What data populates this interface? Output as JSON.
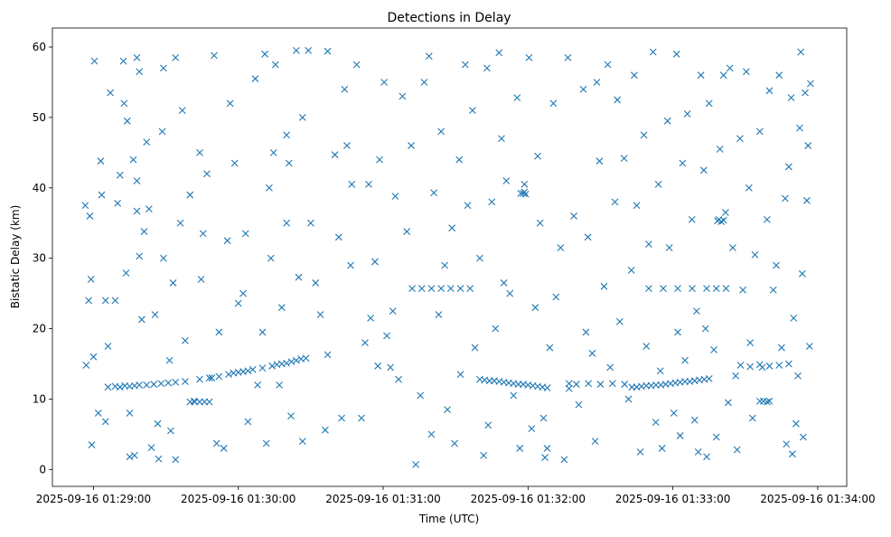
{
  "chart_data": {
    "type": "scatter",
    "title": "Detections in Delay",
    "xlabel": "Time (UTC)",
    "ylabel": "Bistatic Delay (km)",
    "x_units": "seconds after 2025-09-16 01:29:00",
    "xlim": [
      -17,
      312
    ],
    "ylim": [
      -2.4,
      62.7
    ],
    "grid": false,
    "marker": "x",
    "color": "#1f77b4",
    "xticks": [
      {
        "value": 0,
        "label": "2025-09-16 01:29:00"
      },
      {
        "value": 60,
        "label": "2025-09-16 01:30:00"
      },
      {
        "value": 120,
        "label": "2025-09-16 01:31:00"
      },
      {
        "value": 180,
        "label": "2025-09-16 01:32:00"
      },
      {
        "value": 240,
        "label": "2025-09-16 01:33:00"
      },
      {
        "value": 300,
        "label": "2025-09-16 01:34:00"
      }
    ],
    "yticks": [
      {
        "value": 0,
        "label": "0"
      },
      {
        "value": 10,
        "label": "10"
      },
      {
        "value": 20,
        "label": "20"
      },
      {
        "value": 30,
        "label": "30"
      },
      {
        "value": 40,
        "label": "40"
      },
      {
        "value": 50,
        "label": "50"
      },
      {
        "value": 60,
        "label": "60"
      }
    ],
    "points": [
      [
        -3.4,
        37.5
      ],
      [
        -1.5,
        36
      ],
      [
        0.4,
        58
      ],
      [
        -1,
        27
      ],
      [
        -2,
        24
      ],
      [
        0,
        16
      ],
      [
        -3,
        14.8
      ],
      [
        -0.7,
        3.5
      ],
      [
        2,
        8
      ],
      [
        3.4,
        39
      ],
      [
        3,
        43.8
      ],
      [
        5,
        24
      ],
      [
        6,
        17.5
      ],
      [
        5,
        6.8
      ],
      [
        7,
        53.5
      ],
      [
        9,
        24
      ],
      [
        10,
        37.8
      ],
      [
        11,
        41.8
      ],
      [
        12.4,
        58
      ],
      [
        12.7,
        52
      ],
      [
        14,
        49.5
      ],
      [
        13.5,
        27.9
      ],
      [
        15,
        8
      ],
      [
        15,
        1.8
      ],
      [
        17,
        2
      ],
      [
        16.5,
        44
      ],
      [
        18,
        41
      ],
      [
        18,
        36.7
      ],
      [
        19,
        56.5
      ],
      [
        18,
        58.5
      ],
      [
        19,
        30.3
      ],
      [
        20,
        21.3
      ],
      [
        22,
        46.5
      ],
      [
        21,
        33.8
      ],
      [
        23,
        37
      ],
      [
        24,
        3.1
      ],
      [
        25.5,
        22
      ],
      [
        26.6,
        6.5
      ],
      [
        27,
        1.5
      ],
      [
        28.5,
        48
      ],
      [
        29,
        57
      ],
      [
        29,
        30
      ],
      [
        31.5,
        15.5
      ],
      [
        32,
        5.5
      ],
      [
        33,
        26.5
      ],
      [
        34,
        58.5
      ],
      [
        34,
        1.4
      ],
      [
        36,
        35
      ],
      [
        36.8,
        51
      ],
      [
        38,
        18.3
      ],
      [
        40,
        39
      ],
      [
        41.6,
        9.7
      ],
      [
        44,
        45
      ],
      [
        44.6,
        27
      ],
      [
        45.4,
        33.5
      ],
      [
        47,
        42
      ],
      [
        49,
        13
      ],
      [
        50,
        58.8
      ],
      [
        51,
        3.7
      ],
      [
        52,
        19.5
      ],
      [
        54,
        3
      ],
      [
        55.5,
        32.5
      ],
      [
        56.6,
        52
      ],
      [
        58.5,
        43.5
      ],
      [
        60,
        23.6
      ],
      [
        62,
        25
      ],
      [
        63,
        33.5
      ],
      [
        64,
        6.8
      ],
      [
        67,
        55.5
      ],
      [
        68,
        12
      ],
      [
        70,
        19.5
      ],
      [
        71,
        59
      ],
      [
        71.6,
        3.7
      ],
      [
        72.8,
        40
      ],
      [
        73.5,
        30
      ],
      [
        74.6,
        45
      ],
      [
        75.4,
        57.5
      ],
      [
        77,
        12
      ],
      [
        78,
        23
      ],
      [
        80,
        35
      ],
      [
        80,
        47.5
      ],
      [
        81,
        43.5
      ],
      [
        81.8,
        7.6
      ],
      [
        84,
        59.5
      ],
      [
        85,
        27.3
      ],
      [
        86.6,
        4
      ],
      [
        86.6,
        50
      ],
      [
        89,
        59.5
      ],
      [
        90,
        35
      ],
      [
        92,
        26.5
      ],
      [
        94,
        22
      ],
      [
        96,
        5.6
      ],
      [
        97,
        16.3
      ],
      [
        97,
        59.4
      ],
      [
        100,
        44.7
      ],
      [
        101.6,
        33
      ],
      [
        102.8,
        7.3
      ],
      [
        104,
        54
      ],
      [
        105,
        46
      ],
      [
        106.5,
        29
      ],
      [
        107,
        40.5
      ],
      [
        109,
        57.5
      ],
      [
        111,
        7.3
      ],
      [
        112.5,
        18
      ],
      [
        114,
        40.5
      ],
      [
        114.8,
        21.5
      ],
      [
        116.6,
        29.5
      ],
      [
        117.8,
        14.7
      ],
      [
        118.5,
        44
      ],
      [
        120.4,
        55
      ],
      [
        121.5,
        19
      ],
      [
        123,
        14.5
      ],
      [
        124,
        22.5
      ],
      [
        125,
        38.8
      ],
      [
        126.4,
        12.8
      ],
      [
        128,
        53
      ],
      [
        129.8,
        33.8
      ],
      [
        131.6,
        46
      ],
      [
        133.5,
        0.7
      ],
      [
        135.4,
        10.5
      ],
      [
        137,
        55
      ],
      [
        139,
        58.7
      ],
      [
        140,
        5
      ],
      [
        141,
        39.3
      ],
      [
        143,
        22
      ],
      [
        144,
        48
      ],
      [
        145.5,
        29
      ],
      [
        146.6,
        8.5
      ],
      [
        148.5,
        34.3
      ],
      [
        149.6,
        3.7
      ],
      [
        151.5,
        44
      ],
      [
        152,
        13.5
      ],
      [
        154,
        57.5
      ],
      [
        155,
        37.5
      ],
      [
        157,
        51
      ],
      [
        158,
        17.3
      ],
      [
        160,
        30
      ],
      [
        161.6,
        2
      ],
      [
        163,
        57
      ],
      [
        163.5,
        6.3
      ],
      [
        165,
        38
      ],
      [
        166.5,
        20
      ],
      [
        168,
        59.2
      ],
      [
        169,
        47
      ],
      [
        170,
        26.5
      ],
      [
        171,
        41
      ],
      [
        172.5,
        25
      ],
      [
        174,
        10.5
      ],
      [
        175.5,
        52.8
      ],
      [
        176.6,
        3
      ],
      [
        178.5,
        40.5
      ],
      [
        180.4,
        58.5
      ],
      [
        181.5,
        5.8
      ],
      [
        183,
        23
      ],
      [
        184,
        44.5
      ],
      [
        185,
        35
      ],
      [
        186.4,
        7.3
      ],
      [
        187,
        1.7
      ],
      [
        187.9,
        3
      ],
      [
        189,
        17.3
      ],
      [
        190.5,
        52
      ],
      [
        191.6,
        24.5
      ],
      [
        193.5,
        31.5
      ],
      [
        195,
        1.4
      ],
      [
        196.5,
        58.5
      ],
      [
        197,
        11.5
      ],
      [
        199,
        36
      ],
      [
        201,
        9.2
      ],
      [
        202.9,
        54
      ],
      [
        204,
        19.5
      ],
      [
        204.8,
        33
      ],
      [
        206.6,
        16.5
      ],
      [
        207.8,
        4
      ],
      [
        208.5,
        55
      ],
      [
        209.6,
        43.8
      ],
      [
        211.5,
        26
      ],
      [
        213,
        57.5
      ],
      [
        214,
        14.5
      ],
      [
        216,
        38
      ],
      [
        217,
        52.5
      ],
      [
        218,
        21
      ],
      [
        219.8,
        44.2
      ],
      [
        221.6,
        10
      ],
      [
        222.8,
        28.3
      ],
      [
        224,
        56
      ],
      [
        225,
        37.5
      ],
      [
        226.5,
        2.5
      ],
      [
        228,
        47.5
      ],
      [
        229,
        17.5
      ],
      [
        230,
        32
      ],
      [
        231.8,
        59.3
      ],
      [
        232.9,
        6.7
      ],
      [
        234,
        40.5
      ],
      [
        234.8,
        14
      ],
      [
        235.5,
        3
      ],
      [
        237.8,
        49.5
      ],
      [
        238.5,
        31.5
      ],
      [
        240.4,
        8
      ],
      [
        241.5,
        59
      ],
      [
        242,
        19.5
      ],
      [
        243,
        4.8
      ],
      [
        244,
        43.5
      ],
      [
        245,
        15.5
      ],
      [
        246,
        50.5
      ],
      [
        247.9,
        35.5
      ],
      [
        249,
        7
      ],
      [
        249.8,
        22.5
      ],
      [
        250.5,
        2.5
      ],
      [
        251.6,
        56
      ],
      [
        252.8,
        42.5
      ],
      [
        253.5,
        20
      ],
      [
        254,
        1.8
      ],
      [
        255,
        52
      ],
      [
        257,
        17
      ],
      [
        258,
        4.6
      ],
      [
        259.5,
        45.5
      ],
      [
        261,
        56
      ],
      [
        261.8,
        36.5
      ],
      [
        262.9,
        9.5
      ],
      [
        263.6,
        57
      ],
      [
        264.8,
        31.5
      ],
      [
        266,
        13.3
      ],
      [
        266.6,
        2.8
      ],
      [
        267.8,
        47
      ],
      [
        269,
        25.5
      ],
      [
        270.4,
        56.5
      ],
      [
        271.5,
        40
      ],
      [
        272,
        18
      ],
      [
        273,
        7.3
      ],
      [
        274,
        30.5
      ],
      [
        276,
        48
      ],
      [
        277,
        14.5
      ],
      [
        279,
        35.5
      ],
      [
        280,
        53.8
      ],
      [
        281.6,
        25.5
      ],
      [
        282.8,
        29
      ],
      [
        284,
        56
      ],
      [
        285,
        17.3
      ],
      [
        286.5,
        38.5
      ],
      [
        287,
        3.6
      ],
      [
        288,
        43
      ],
      [
        289,
        52.8
      ],
      [
        289.5,
        2.2
      ],
      [
        290,
        21.5
      ],
      [
        291,
        6.5
      ],
      [
        291.8,
        13.3
      ],
      [
        292.5,
        48.5
      ],
      [
        293,
        59.3
      ],
      [
        293.6,
        27.8
      ],
      [
        294,
        4.6
      ],
      [
        294.8,
        53.5
      ],
      [
        295.5,
        38.2
      ],
      [
        296,
        46
      ],
      [
        296.6,
        17.5
      ],
      [
        297,
        54.8
      ],
      [
        6,
        11.7
      ],
      [
        9,
        11.8
      ],
      [
        11,
        11.7
      ],
      [
        13,
        11.9
      ],
      [
        15,
        11.8
      ],
      [
        17,
        11.9
      ],
      [
        19,
        12
      ],
      [
        22,
        12
      ],
      [
        25,
        12.1
      ],
      [
        28,
        12.2
      ],
      [
        31,
        12.3
      ],
      [
        34,
        12.4
      ],
      [
        38,
        12.5
      ],
      [
        44,
        12.8
      ],
      [
        48,
        13
      ],
      [
        52,
        13.2
      ],
      [
        56,
        13.5
      ],
      [
        58,
        13.7
      ],
      [
        60,
        13.8
      ],
      [
        62,
        13.9
      ],
      [
        64,
        14
      ],
      [
        66,
        14.2
      ],
      [
        70,
        14.4
      ],
      [
        74,
        14.7
      ],
      [
        76,
        14.9
      ],
      [
        78,
        15
      ],
      [
        80,
        15.1
      ],
      [
        82,
        15.3
      ],
      [
        84,
        15.5
      ],
      [
        86,
        15.7
      ],
      [
        88,
        15.8
      ],
      [
        160,
        12.8
      ],
      [
        162,
        12.7
      ],
      [
        164,
        12.6
      ],
      [
        166,
        12.6
      ],
      [
        168,
        12.5
      ],
      [
        170,
        12.4
      ],
      [
        172,
        12.3
      ],
      [
        174,
        12.2
      ],
      [
        176,
        12.1
      ],
      [
        178,
        12.1
      ],
      [
        180,
        12
      ],
      [
        182,
        11.9
      ],
      [
        184,
        11.8
      ],
      [
        186,
        11.7
      ],
      [
        188,
        11.6
      ],
      [
        223,
        11.7
      ],
      [
        225,
        11.7
      ],
      [
        227,
        11.8
      ],
      [
        229,
        11.9
      ],
      [
        231,
        11.9
      ],
      [
        233,
        12
      ],
      [
        235,
        12
      ],
      [
        237,
        12.1
      ],
      [
        239,
        12.2
      ],
      [
        241,
        12.3
      ],
      [
        243,
        12.4
      ],
      [
        245,
        12.5
      ],
      [
        247,
        12.5
      ],
      [
        249,
        12.6
      ],
      [
        251,
        12.7
      ],
      [
        253,
        12.8
      ],
      [
        255,
        12.9
      ],
      [
        132,
        25.7
      ],
      [
        136,
        25.7
      ],
      [
        140,
        25.7
      ],
      [
        144,
        25.7
      ],
      [
        148,
        25.7
      ],
      [
        152,
        25.7
      ],
      [
        156,
        25.7
      ],
      [
        230,
        25.7
      ],
      [
        236,
        25.7
      ],
      [
        242,
        25.7
      ],
      [
        248,
        25.7
      ],
      [
        254,
        25.7
      ],
      [
        258,
        25.7
      ],
      [
        262,
        25.7
      ],
      [
        177,
        39.2
      ],
      [
        178,
        39.2
      ],
      [
        178.5,
        39.4
      ],
      [
        179,
        39.1
      ],
      [
        258.5,
        35.3
      ],
      [
        259,
        35.5
      ],
      [
        260,
        35.2
      ],
      [
        261,
        35.4
      ],
      [
        276,
        9.7
      ],
      [
        277.5,
        9.7
      ],
      [
        279,
        9.6
      ],
      [
        280,
        9.7
      ],
      [
        40,
        9.6
      ],
      [
        42,
        9.6
      ],
      [
        44,
        9.6
      ],
      [
        46,
        9.6
      ],
      [
        48,
        9.6
      ],
      [
        197,
        12.2
      ],
      [
        200,
        12.1
      ],
      [
        205,
        12.2
      ],
      [
        210,
        12.1
      ],
      [
        215,
        12.2
      ],
      [
        220,
        12.1
      ],
      [
        268,
        14.8
      ],
      [
        272,
        14.6
      ],
      [
        276,
        14.9
      ],
      [
        280,
        14.7
      ],
      [
        284,
        14.8
      ],
      [
        288,
        15
      ]
    ]
  }
}
